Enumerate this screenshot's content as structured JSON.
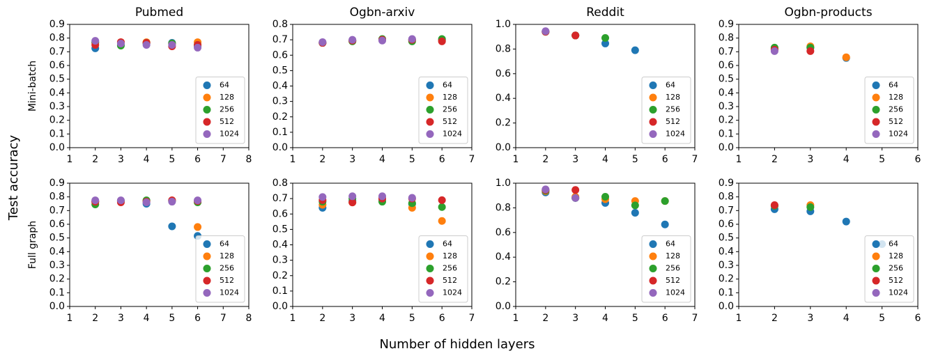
{
  "xlabel": "Number of hidden layers",
  "ylabel": "Test accuracy",
  "chart_data": [
    {
      "type": "scatter",
      "title": "Pubmed",
      "ylabel": "Mini-batch",
      "xlim": [
        1,
        8
      ],
      "xticks": [
        1,
        2,
        3,
        4,
        5,
        6,
        7,
        8
      ],
      "ylim": [
        0,
        0.9
      ],
      "yticks": [
        {
          "value": 0,
          "label": "0.0"
        },
        0.1,
        0.2,
        0.3,
        0.4,
        0.5,
        0.6,
        0.7,
        0.8,
        0.9
      ],
      "legend": "lower right",
      "series": [
        {
          "name": "64",
          "color": "#1f77b4",
          "x": [
            2,
            3,
            4,
            5,
            6
          ],
          "values": [
            0.725,
            0.75,
            0.76,
            0.765,
            0.74
          ]
        },
        {
          "name": "128",
          "color": "#ff7f0e",
          "x": [
            2,
            3,
            4,
            5,
            6
          ],
          "values": [
            0.765,
            0.77,
            0.77,
            0.76,
            0.77
          ]
        },
        {
          "name": "256",
          "color": "#2ca02c",
          "x": [
            2,
            3,
            4,
            5,
            6
          ],
          "values": [
            0.77,
            0.745,
            0.765,
            0.76,
            0.75
          ]
        },
        {
          "name": "512",
          "color": "#d62728",
          "x": [
            2,
            3,
            4,
            5,
            6
          ],
          "values": [
            0.75,
            0.77,
            0.765,
            0.74,
            0.75
          ]
        },
        {
          "name": "1024",
          "color": "#9467bd",
          "x": [
            2,
            3,
            4,
            5,
            6
          ],
          "values": [
            0.78,
            0.76,
            0.75,
            0.75,
            0.73
          ]
        }
      ]
    },
    {
      "type": "scatter",
      "title": "Ogbn-arxiv",
      "xlim": [
        1,
        7
      ],
      "xticks": [
        1,
        2,
        3,
        4,
        5,
        6,
        7
      ],
      "ylim": [
        0,
        0.8
      ],
      "yticks": [
        {
          "value": 0,
          "label": "0.0"
        },
        0.1,
        0.2,
        0.3,
        0.4,
        0.5,
        0.6,
        0.7,
        0.8
      ],
      "legend": "lower right",
      "series": [
        {
          "name": "64",
          "color": "#1f77b4",
          "x": [
            2,
            3,
            4,
            5,
            6
          ],
          "values": [
            0.68,
            0.695,
            0.7,
            0.7,
            0.7
          ]
        },
        {
          "name": "128",
          "color": "#ff7f0e",
          "x": [
            2,
            3,
            4,
            5,
            6
          ],
          "values": [
            0.68,
            0.695,
            0.7,
            0.7,
            0.695
          ]
        },
        {
          "name": "256",
          "color": "#2ca02c",
          "x": [
            2,
            3,
            4,
            5,
            6
          ],
          "values": [
            0.68,
            0.69,
            0.705,
            0.69,
            0.705
          ]
        },
        {
          "name": "512",
          "color": "#d62728",
          "x": [
            2,
            3,
            4,
            5,
            6
          ],
          "values": [
            0.68,
            0.695,
            0.7,
            0.7,
            0.69
          ]
        },
        {
          "name": "1024",
          "color": "#9467bd",
          "x": [
            2,
            3,
            4,
            5
          ],
          "values": [
            0.685,
            0.7,
            0.695,
            0.705
          ]
        }
      ]
    },
    {
      "type": "scatter",
      "title": "Reddit",
      "xlim": [
        1,
        7
      ],
      "xticks": [
        1,
        2,
        3,
        4,
        5,
        6,
        7
      ],
      "ylim": [
        0,
        1
      ],
      "yticks": [
        {
          "value": 0,
          "label": "0.0"
        },
        0.2,
        0.4,
        0.6,
        0.8,
        {
          "value": 1,
          "label": "1.0"
        }
      ],
      "legend": "lower right",
      "series": [
        {
          "name": "64",
          "color": "#1f77b4",
          "x": [
            2,
            3,
            4,
            5
          ],
          "values": [
            0.94,
            0.91,
            0.845,
            0.79
          ]
        },
        {
          "name": "128",
          "color": "#ff7f0e",
          "x": [
            2,
            3
          ],
          "values": [
            0.94,
            0.91
          ]
        },
        {
          "name": "256",
          "color": "#2ca02c",
          "x": [
            2,
            3,
            4
          ],
          "values": [
            0.94,
            0.91,
            0.89
          ]
        },
        {
          "name": "512",
          "color": "#d62728",
          "x": [
            2,
            3
          ],
          "values": [
            0.94,
            0.91
          ]
        },
        {
          "name": "1024",
          "color": "#9467bd",
          "x": [
            2
          ],
          "values": [
            0.945
          ]
        }
      ]
    },
    {
      "type": "scatter",
      "title": "Ogbn-products",
      "xlim": [
        1,
        6
      ],
      "xticks": [
        1,
        2,
        3,
        4,
        5,
        6
      ],
      "ylim": [
        0,
        0.9
      ],
      "yticks": [
        {
          "value": 0,
          "label": "0.0"
        },
        0.1,
        0.2,
        0.3,
        0.4,
        0.5,
        0.6,
        0.7,
        0.8,
        0.9
      ],
      "legend": "lower right",
      "series": [
        {
          "name": "64",
          "color": "#1f77b4",
          "x": [
            2,
            3,
            4
          ],
          "values": [
            0.72,
            0.73,
            0.655
          ]
        },
        {
          "name": "128",
          "color": "#ff7f0e",
          "x": [
            2,
            3,
            4
          ],
          "values": [
            0.725,
            0.74,
            0.66
          ]
        },
        {
          "name": "256",
          "color": "#2ca02c",
          "x": [
            2,
            3
          ],
          "values": [
            0.73,
            0.73
          ]
        },
        {
          "name": "512",
          "color": "#d62728",
          "x": [
            2,
            3
          ],
          "values": [
            0.715,
            0.705
          ]
        },
        {
          "name": "1024",
          "color": "#9467bd",
          "x": [
            2
          ],
          "values": [
            0.705
          ]
        }
      ]
    },
    {
      "type": "scatter",
      "ylabel": "Full graph",
      "xlim": [
        1,
        8
      ],
      "xticks": [
        1,
        2,
        3,
        4,
        5,
        6,
        7,
        8
      ],
      "ylim": [
        0,
        0.9
      ],
      "yticks": [
        {
          "value": 0,
          "label": "0.0"
        },
        0.1,
        0.2,
        0.3,
        0.4,
        0.5,
        0.6,
        0.7,
        0.8,
        0.9
      ],
      "legend": "lower right",
      "series": [
        {
          "name": "64",
          "color": "#1f77b4",
          "x": [
            2,
            3,
            4,
            5,
            6
          ],
          "values": [
            0.765,
            0.77,
            0.75,
            0.585,
            0.515
          ]
        },
        {
          "name": "128",
          "color": "#ff7f0e",
          "x": [
            2,
            3,
            4,
            5,
            6
          ],
          "values": [
            0.765,
            0.77,
            0.77,
            0.775,
            0.58
          ]
        },
        {
          "name": "256",
          "color": "#2ca02c",
          "x": [
            2,
            3,
            4,
            5,
            6
          ],
          "values": [
            0.745,
            0.77,
            0.775,
            0.77,
            0.76
          ]
        },
        {
          "name": "512",
          "color": "#d62728",
          "x": [
            2,
            3,
            4,
            5,
            6
          ],
          "values": [
            0.765,
            0.76,
            0.765,
            0.775,
            0.77
          ]
        },
        {
          "name": "1024",
          "color": "#9467bd",
          "x": [
            2,
            3,
            4,
            5,
            6
          ],
          "values": [
            0.775,
            0.775,
            0.76,
            0.765,
            0.775
          ]
        }
      ]
    },
    {
      "type": "scatter",
      "xlim": [
        1,
        7
      ],
      "xticks": [
        1,
        2,
        3,
        4,
        5,
        6,
        7
      ],
      "ylim": [
        0,
        0.8
      ],
      "yticks": [
        {
          "value": 0,
          "label": "0.0"
        },
        0.1,
        0.2,
        0.3,
        0.4,
        0.5,
        0.6,
        0.7,
        0.8
      ],
      "legend": "lower right",
      "series": [
        {
          "name": "64",
          "color": "#1f77b4",
          "x": [
            2,
            3,
            4,
            5
          ],
          "values": [
            0.64,
            0.685,
            0.695,
            0.665
          ]
        },
        {
          "name": "128",
          "color": "#ff7f0e",
          "x": [
            2,
            3,
            4,
            5,
            6
          ],
          "values": [
            0.66,
            0.675,
            0.7,
            0.64,
            0.555
          ]
        },
        {
          "name": "256",
          "color": "#2ca02c",
          "x": [
            2,
            3,
            4,
            5,
            6
          ],
          "values": [
            0.68,
            0.7,
            0.68,
            0.67,
            0.645
          ]
        },
        {
          "name": "512",
          "color": "#d62728",
          "x": [
            2,
            3,
            4,
            5,
            6
          ],
          "values": [
            0.69,
            0.675,
            0.7,
            0.7,
            0.69
          ]
        },
        {
          "name": "1024",
          "color": "#9467bd",
          "x": [
            2,
            3,
            4,
            5
          ],
          "values": [
            0.71,
            0.715,
            0.715,
            0.705
          ]
        }
      ]
    },
    {
      "type": "scatter",
      "xlim": [
        1,
        7
      ],
      "xticks": [
        1,
        2,
        3,
        4,
        5,
        6,
        7
      ],
      "ylim": [
        0,
        1
      ],
      "yticks": [
        {
          "value": 0,
          "label": "0.0"
        },
        0.2,
        0.4,
        0.6,
        0.8,
        {
          "value": 1,
          "label": "1.0"
        }
      ],
      "legend": "lower right",
      "series": [
        {
          "name": "64",
          "color": "#1f77b4",
          "x": [
            2,
            3,
            4,
            5,
            6
          ],
          "values": [
            0.925,
            0.88,
            0.84,
            0.76,
            0.665
          ]
        },
        {
          "name": "128",
          "color": "#ff7f0e",
          "x": [
            2,
            3,
            4,
            5,
            6
          ],
          "values": [
            0.935,
            0.89,
            0.87,
            0.855,
            0.855
          ]
        },
        {
          "name": "256",
          "color": "#2ca02c",
          "x": [
            2,
            3,
            4,
            5,
            6
          ],
          "values": [
            0.94,
            0.88,
            0.89,
            0.82,
            0.855
          ]
        },
        {
          "name": "512",
          "color": "#d62728",
          "x": [
            2,
            3
          ],
          "values": [
            0.945,
            0.945
          ]
        },
        {
          "name": "1024",
          "color": "#9467bd",
          "x": [
            2,
            3
          ],
          "values": [
            0.95,
            0.88
          ]
        }
      ]
    },
    {
      "type": "scatter",
      "xlim": [
        1,
        6
      ],
      "xticks": [
        1,
        2,
        3,
        4,
        5,
        6
      ],
      "ylim": [
        0,
        0.9
      ],
      "yticks": [
        {
          "value": 0,
          "label": "0.0"
        },
        0.1,
        0.2,
        0.3,
        0.4,
        0.5,
        0.6,
        0.7,
        0.8,
        0.9
      ],
      "legend": "lower right",
      "series": [
        {
          "name": "64",
          "color": "#1f77b4",
          "x": [
            2,
            3,
            4,
            5
          ],
          "values": [
            0.71,
            0.695,
            0.62,
            0.455
          ]
        },
        {
          "name": "128",
          "color": "#ff7f0e",
          "x": [
            2,
            3
          ],
          "values": [
            0.735,
            0.74
          ]
        },
        {
          "name": "256",
          "color": "#2ca02c",
          "x": [
            2,
            3
          ],
          "values": [
            0.735,
            0.725
          ]
        },
        {
          "name": "512",
          "color": "#d62728",
          "x": [
            2
          ],
          "values": [
            0.74
          ]
        },
        {
          "name": "1024",
          "color": "#9467bd",
          "x": [],
          "values": []
        }
      ]
    }
  ]
}
